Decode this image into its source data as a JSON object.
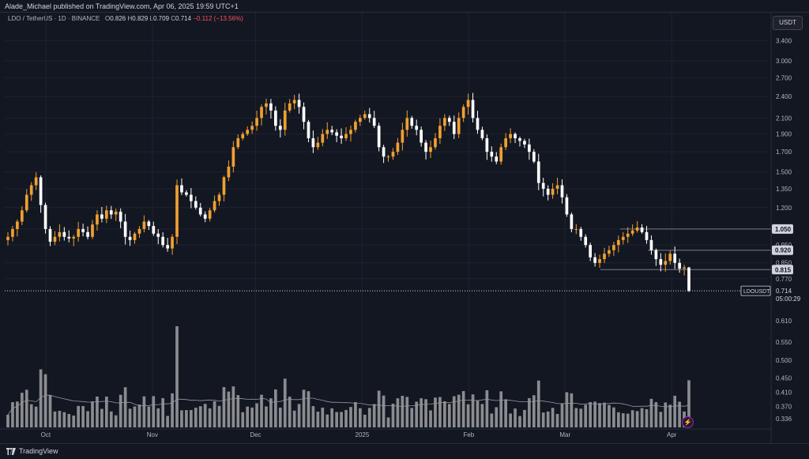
{
  "header": {
    "publisher_line": "Alade_Michael published on TradingView.com, Apr 06, 2025 19:59 UTC+1"
  },
  "legend": {
    "symbol_line": "LDO / TetherUS · 1D · BINANCE",
    "open_label": "O",
    "open": "0.826",
    "high_label": "H",
    "high": "0.829",
    "low_label": "L",
    "low": "0.709",
    "close_label": "C",
    "close": "0.714",
    "change": "−0.112 (−13.56%)"
  },
  "currency_button": "USDT",
  "footer": {
    "brand": "TradingView"
  },
  "alert_icon": "lightning-icon",
  "colors": {
    "background": "#131722",
    "up_candle": "#f0a030",
    "down_candle": "#ffffff",
    "grid": "#1f2330",
    "axis_text": "#b2b5be",
    "volume_bar": "#b4b4b4",
    "volume_ma": "#9598a1"
  },
  "chart_data": {
    "type": "candlestick",
    "symbol": "LDOUSDT",
    "scale": "log",
    "price_axis_labels": [
      "3.400",
      "3.000",
      "2.700",
      "2.400",
      "2.100",
      "1.900",
      "1.700",
      "1.500",
      "1.350",
      "1.200",
      "1.050",
      "0.950",
      "0.920",
      "0.850",
      "0.815",
      "0.770",
      "0.610",
      "0.550",
      "0.500",
      "0.450",
      "0.410",
      "0.370",
      "0.336"
    ],
    "highlighted_levels": [
      "1.050",
      "0.920",
      "0.815"
    ],
    "last_price_tag": {
      "symbol": "LDOUSDT",
      "price": "0.714",
      "countdown": "05:00:29"
    },
    "x_tick_labels": [
      "Oct",
      "Nov",
      "Dec",
      "2025",
      "Feb",
      "Mar",
      "Apr"
    ],
    "date_range": [
      "2024-09-20",
      "2025-04-06"
    ],
    "last": {
      "open": 0.826,
      "high": 0.829,
      "low": 0.709,
      "close": 0.714
    },
    "price_path": [
      1.0,
      1.05,
      1.1,
      1.18,
      1.3,
      1.38,
      1.45,
      1.22,
      1.05,
      0.97,
      1.0,
      1.03,
      1.0,
      0.99,
      1.0,
      1.05,
      1.03,
      1.0,
      1.08,
      1.15,
      1.12,
      1.18,
      1.15,
      1.17,
      1.1,
      1.0,
      0.98,
      1.02,
      1.05,
      1.1,
      1.07,
      1.02,
      1.0,
      0.95,
      0.93,
      1.0,
      1.38,
      1.32,
      1.3,
      1.25,
      1.2,
      1.15,
      1.12,
      1.18,
      1.25,
      1.3,
      1.45,
      1.55,
      1.75,
      1.85,
      1.9,
      1.95,
      2.0,
      2.1,
      2.25,
      2.3,
      2.2,
      2.0,
      1.95,
      2.2,
      2.3,
      2.35,
      2.25,
      2.05,
      1.85,
      1.75,
      1.8,
      1.9,
      1.95,
      1.92,
      1.88,
      1.85,
      1.9,
      1.95,
      2.05,
      2.1,
      2.15,
      2.1,
      2.0,
      1.75,
      1.65,
      1.65,
      1.7,
      1.8,
      1.95,
      2.1,
      2.0,
      1.95,
      1.8,
      1.7,
      1.75,
      1.85,
      2.0,
      2.1,
      2.05,
      1.9,
      2.1,
      2.25,
      2.35,
      2.1,
      1.95,
      1.85,
      1.7,
      1.65,
      1.6,
      1.75,
      1.85,
      1.9,
      1.85,
      1.82,
      1.78,
      1.7,
      1.6,
      1.4,
      1.35,
      1.3,
      1.35,
      1.38,
      1.28,
      1.15,
      1.05,
      1.05,
      1.0,
      0.95,
      0.88,
      0.85,
      0.87,
      0.9,
      0.92,
      0.95,
      0.98,
      1.0,
      1.02,
      1.04,
      1.06,
      1.03,
      0.98,
      0.92,
      0.87,
      0.84,
      0.86,
      0.9,
      0.85,
      0.82,
      0.826,
      0.714
    ],
    "volume_axis": "values shown on shared right axis region",
    "volume_ma_label": "moving average of volume"
  }
}
